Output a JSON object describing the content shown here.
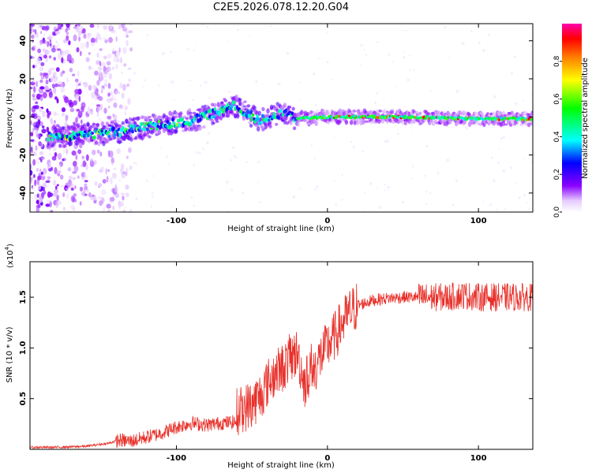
{
  "title": "C2E5.2026.078.12.20.G04",
  "chart_data": [
    {
      "type": "heatmap",
      "title": "C2E5.2026.078.12.20.G04",
      "xlabel": "Height of straight line (km)",
      "ylabel": "Frequency (Hz)",
      "xlim": [
        -197,
        136
      ],
      "ylim": [
        -50,
        49
      ],
      "xticks": [
        -100,
        0,
        100
      ],
      "yticks": [
        -40,
        -20,
        0,
        20,
        40
      ],
      "colorbar": {
        "label": "Normalized spectral amplitude",
        "range": [
          0,
          1
        ],
        "ticks": [
          0.0,
          0.2,
          0.4,
          0.6,
          0.8
        ],
        "tick_labels": [
          "0.0",
          "0.2",
          "0.4",
          "0.6",
          "0.8"
        ]
      },
      "ridge": {
        "description_points": [
          {
            "x": -170,
            "f": -10
          },
          {
            "x": -140,
            "f": -8
          },
          {
            "x": -110,
            "f": -4
          },
          {
            "x": -90,
            "f": -2
          },
          {
            "x": -75,
            "f": 2
          },
          {
            "x": -62,
            "f": 6
          },
          {
            "x": -45,
            "f": -2
          },
          {
            "x": -30,
            "f": 2
          },
          {
            "x": -20,
            "f": -1
          },
          {
            "x": 0,
            "f": 0
          },
          {
            "x": 50,
            "f": 0
          },
          {
            "x": 100,
            "f": -1
          },
          {
            "x": 136,
            "f": -1
          }
        ],
        "peak_amplitude": 0.95,
        "noise_region_x": [
          -197,
          -130
        ]
      }
    },
    {
      "type": "line",
      "xlabel": "Height of straight line (km)",
      "ylabel": "SNR (10 * v/v)",
      "multiplier_label": "(x10",
      "multiplier_exp": "4",
      "multiplier_close": ")",
      "xlim": [
        -197,
        136
      ],
      "ylim": [
        0,
        1.85
      ],
      "xticks": [
        -100,
        0,
        100
      ],
      "yticks": [
        0.5,
        1.0,
        1.5
      ],
      "ytick_labels": [
        "0.5",
        "1.0",
        "1.5"
      ],
      "color": "#e8302a",
      "series": [
        {
          "name": "SNR",
          "x": [
            -197,
            -180,
            -160,
            -145,
            -138,
            -130,
            -120,
            -110,
            -100,
            -90,
            -80,
            -70,
            -60,
            -50,
            -45,
            -40,
            -35,
            -30,
            -25,
            -20,
            -15,
            -10,
            -5,
            0,
            5,
            10,
            15,
            20,
            30,
            40,
            50,
            60,
            70,
            80,
            90,
            100,
            110,
            120,
            136
          ],
          "values": [
            0.02,
            0.02,
            0.03,
            0.06,
            0.09,
            0.08,
            0.12,
            0.16,
            0.22,
            0.26,
            0.24,
            0.26,
            0.27,
            0.35,
            0.42,
            0.55,
            0.65,
            0.7,
            0.8,
            0.85,
            0.55,
            0.75,
            0.9,
            1.02,
            1.12,
            1.25,
            1.35,
            1.42,
            1.47,
            1.49,
            1.5,
            1.5,
            1.5,
            1.5,
            1.52,
            1.5,
            1.5,
            1.5,
            1.5
          ]
        }
      ]
    }
  ]
}
